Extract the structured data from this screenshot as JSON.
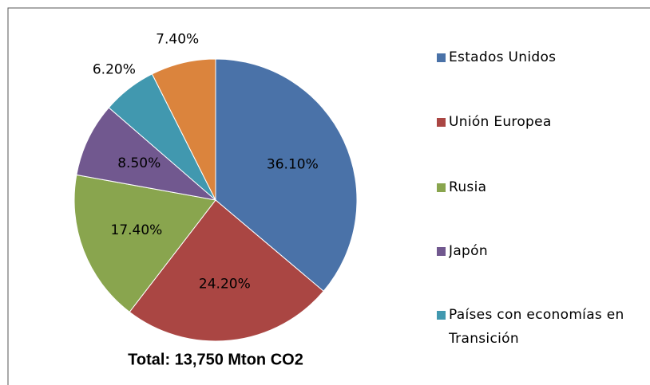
{
  "chart_data": {
    "type": "pie",
    "annotation": "Total: 13,750 Mton CO2",
    "categories": [
      "Estados Unidos",
      "Unión Europea",
      "Rusia",
      "Japón",
      "Países con economías en Transición",
      null
    ],
    "values": [
      36.1,
      24.2,
      17.4,
      8.5,
      6.2,
      7.4
    ],
    "value_labels": [
      "36.10%",
      "24.20%",
      "17.40%",
      "8.50%",
      "6.20%",
      "7.40%"
    ],
    "colors": [
      "#4a72a8",
      "#aa4643",
      "#89a54e",
      "#71588f",
      "#4198af",
      "#db843d"
    ]
  }
}
